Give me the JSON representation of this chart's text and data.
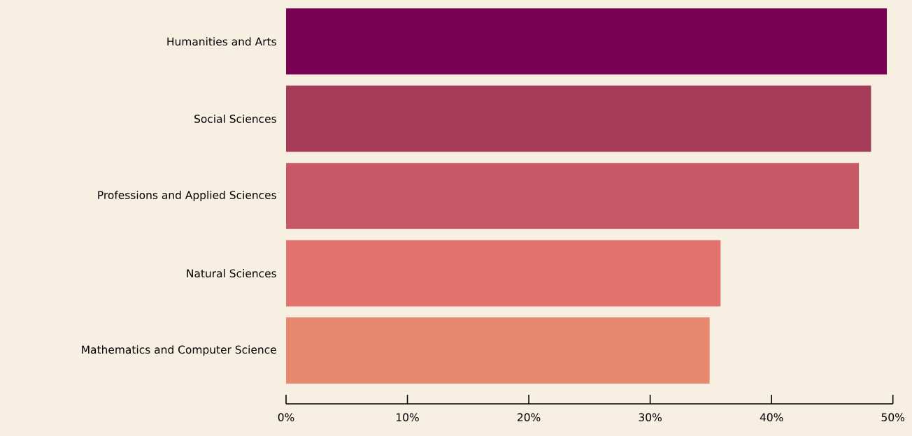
{
  "chart_data": {
    "type": "bar",
    "orientation": "horizontal",
    "categories": [
      "Humanities and Arts",
      "Social Sciences",
      "Professions and Applied Sciences",
      "Natural Sciences",
      "Mathematics and Computer Science"
    ],
    "values": [
      49.5,
      48.2,
      47.2,
      35.8,
      34.9
    ],
    "colors": [
      "#770050",
      "#a53c5a",
      "#c75865",
      "#e2736f",
      "#e6896f"
    ],
    "xlim": [
      0,
      50
    ],
    "xticks": [
      {
        "value": 0,
        "label": "0%"
      },
      {
        "value": 10,
        "label": "10%"
      },
      {
        "value": 20,
        "label": "20%"
      },
      {
        "value": 30,
        "label": "30%"
      },
      {
        "value": 40,
        "label": "40%"
      },
      {
        "value": 50,
        "label": "50%"
      }
    ]
  }
}
